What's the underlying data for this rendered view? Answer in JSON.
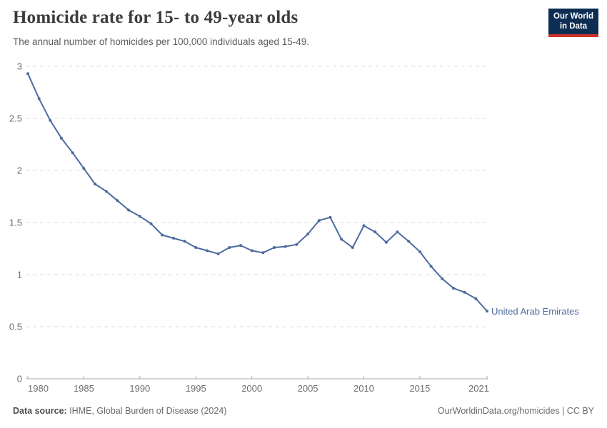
{
  "header": {
    "title": "Homicide rate for 15- to 49-year olds",
    "subtitle": "The annual number of homicides per 100,000 individuals aged 15-49.",
    "logo": {
      "line1": "Our World",
      "line2": "in Data"
    }
  },
  "chart_data": {
    "type": "line",
    "title": "Homicide rate for 15- to 49-year olds",
    "xlabel": "",
    "ylabel": "",
    "x": [
      1980,
      1981,
      1982,
      1983,
      1984,
      1985,
      1986,
      1987,
      1988,
      1989,
      1990,
      1991,
      1992,
      1993,
      1994,
      1995,
      1996,
      1997,
      1998,
      1999,
      2000,
      2001,
      2002,
      2003,
      2004,
      2005,
      2006,
      2007,
      2008,
      2009,
      2010,
      2011,
      2012,
      2013,
      2014,
      2015,
      2016,
      2017,
      2018,
      2019,
      2020,
      2021
    ],
    "series": [
      {
        "name": "United Arab Emirates",
        "color": "#4d6b9e",
        "values": [
          2.93,
          2.69,
          2.48,
          2.31,
          2.17,
          2.02,
          1.87,
          1.8,
          1.71,
          1.62,
          1.56,
          1.49,
          1.38,
          1.35,
          1.32,
          1.26,
          1.23,
          1.2,
          1.26,
          1.28,
          1.23,
          1.21,
          1.26,
          1.27,
          1.29,
          1.39,
          1.52,
          1.55,
          1.34,
          1.26,
          1.47,
          1.41,
          1.31,
          1.41,
          1.32,
          1.22,
          1.08,
          0.96,
          0.87,
          0.83,
          0.77,
          0.65
        ]
      }
    ],
    "ylim": [
      0,
      3
    ],
    "yticks": [
      0,
      0.5,
      1,
      1.5,
      2,
      2.5,
      3
    ],
    "xticks": [
      1980,
      1985,
      1990,
      1995,
      2000,
      2005,
      2010,
      2015,
      2021
    ],
    "grid": "horizontal-dashed",
    "legend_position": "end-of-line-label"
  },
  "annotations": {
    "entity_label": "United Arab Emirates"
  },
  "footer": {
    "source_label": "Data source:",
    "source_text": " IHME, Global Burden of Disease (2024)",
    "license_text": "OurWorldinData.org/homicides | CC BY"
  },
  "colors": {
    "line": "#4d6b9e",
    "gridline": "#dcdcdc",
    "axis": "#a9a9a9",
    "tick_label": "#6e6e6e",
    "logo_bg": "#0d2e52",
    "logo_accent": "#cf342b"
  }
}
